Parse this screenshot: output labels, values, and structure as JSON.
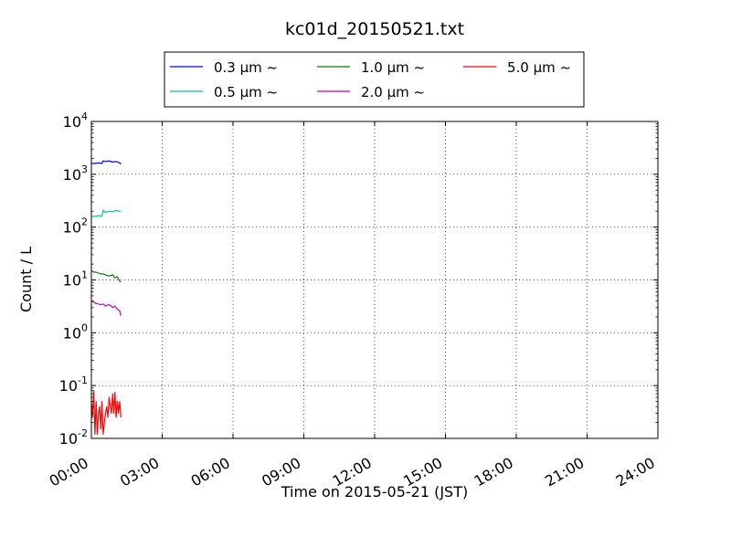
{
  "chart_data": {
    "type": "line",
    "title": "kc01d_20150521.txt",
    "xlabel": "Time on 2015-05-21 (JST)",
    "ylabel": "Count / L",
    "xlim": [
      "00:00",
      "24:00"
    ],
    "x_ticks": [
      "00:00",
      "03:00",
      "06:00",
      "09:00",
      "12:00",
      "15:00",
      "18:00",
      "21:00",
      "24:00"
    ],
    "yscale": "log",
    "ylim": [
      0.01,
      10000
    ],
    "y_ticks": [
      {
        "value": 0.01,
        "base": "10",
        "exp": "-2"
      },
      {
        "value": 0.1,
        "base": "10",
        "exp": "-1"
      },
      {
        "value": 1,
        "base": "10",
        "exp": "0"
      },
      {
        "value": 10,
        "base": "10",
        "exp": "1"
      },
      {
        "value": 100,
        "base": "10",
        "exp": "2"
      },
      {
        "value": 1000,
        "base": "10",
        "exp": "3"
      },
      {
        "value": 10000,
        "base": "10",
        "exp": "4"
      }
    ],
    "grid": true,
    "legend_position": "top",
    "series": [
      {
        "name": "0.3 μm ~",
        "color": "#0000ff",
        "x": [
          "00:00",
          "00:09",
          "00:18",
          "00:27",
          "00:30",
          "00:36",
          "00:45",
          "00:54",
          "01:03",
          "01:12",
          "01:15"
        ],
        "y": [
          1600,
          1600,
          1650,
          1600,
          1800,
          1750,
          1800,
          1700,
          1750,
          1650,
          1550
        ]
      },
      {
        "name": "0.5 μm ~",
        "color": "#00bfbf",
        "x": [
          "00:00",
          "00:09",
          "00:18",
          "00:27",
          "00:30",
          "00:36",
          "00:45",
          "00:54",
          "01:03",
          "01:12",
          "01:15"
        ],
        "y": [
          160,
          160,
          165,
          160,
          210,
          190,
          200,
          195,
          205,
          200,
          195
        ]
      },
      {
        "name": "1.0 μm ~",
        "color": "#008000",
        "x": [
          "00:00",
          "00:06",
          "00:12",
          "00:18",
          "00:24",
          "00:30",
          "00:36",
          "00:42",
          "00:48",
          "00:54",
          "01:00",
          "01:06",
          "01:12",
          "01:15"
        ],
        "y": [
          15,
          14,
          14,
          13.5,
          13,
          13,
          12.5,
          12,
          12,
          12.5,
          11,
          11.5,
          9.5,
          9
        ]
      },
      {
        "name": "2.0 μm ~",
        "color": "#bf00bf",
        "x": [
          "00:00",
          "00:06",
          "00:12",
          "00:18",
          "00:24",
          "00:30",
          "00:36",
          "00:42",
          "00:48",
          "00:54",
          "01:00",
          "01:06",
          "01:12",
          "01:15"
        ],
        "y": [
          4,
          3.8,
          3.6,
          3.5,
          3.4,
          3.5,
          3.2,
          3.4,
          3.3,
          3.0,
          3.2,
          2.8,
          2.6,
          2.1
        ]
      },
      {
        "name": "5.0 μm ~",
        "color": "#ff0000",
        "x": [
          "00:00",
          "00:03",
          "00:06",
          "00:09",
          "00:12",
          "00:15",
          "00:18",
          "00:21",
          "00:24",
          "00:27",
          "00:30",
          "00:33",
          "00:36",
          "00:39",
          "00:42",
          "00:45",
          "00:48",
          "00:51",
          "00:54",
          "00:57",
          "01:00",
          "01:03",
          "01:06",
          "01:09",
          "01:12",
          "01:15"
        ],
        "y": [
          0.05,
          0.025,
          0.08,
          0.012,
          0.05,
          0.012,
          0.03,
          0.04,
          0.015,
          0.05,
          0.012,
          0.02,
          0.03,
          0.04,
          0.025,
          0.06,
          0.04,
          0.03,
          0.07,
          0.03,
          0.075,
          0.025,
          0.05,
          0.03,
          0.05,
          0.025
        ]
      }
    ]
  }
}
